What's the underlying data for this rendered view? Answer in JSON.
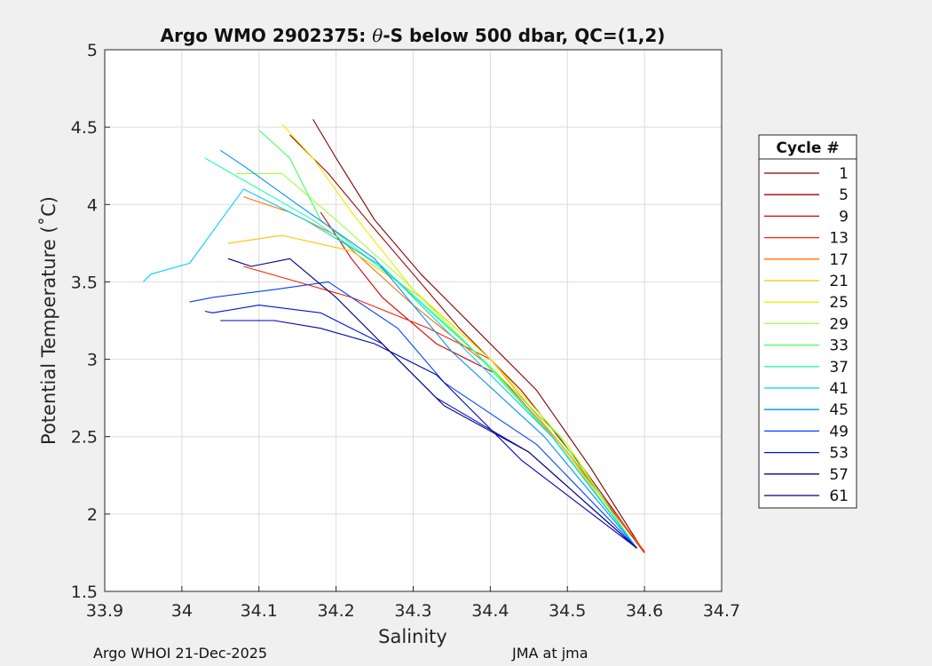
{
  "chart_data": {
    "type": "line",
    "title_prefix": "Argo WMO 2902375: ",
    "title_theta": "θ",
    "title_suffix": "-S below 500 dbar,  QC=(1,2)",
    "xlabel": "Salinity",
    "ylabel": "Potential Temperature (˚C)",
    "xlim": [
      33.9,
      34.7
    ],
    "ylim": [
      1.5,
      5
    ],
    "xticks": [
      "33.9",
      "34",
      "34.1",
      "34.2",
      "34.3",
      "34.4",
      "34.5",
      "34.6",
      "34.7"
    ],
    "yticks": [
      "1.5",
      "2",
      "2.5",
      "3",
      "3.5",
      "4",
      "4.5",
      "5"
    ],
    "grid": true,
    "legend": {
      "title": "Cycle #",
      "placement": "right",
      "entries": [
        {
          "label": "1",
          "color": "#800000"
        },
        {
          "label": "5",
          "color": "#a30000"
        },
        {
          "label": "9",
          "color": "#d40000"
        },
        {
          "label": "13",
          "color": "#ff2000"
        },
        {
          "label": "17",
          "color": "#ff7000"
        },
        {
          "label": "21",
          "color": "#ffc000"
        },
        {
          "label": "25",
          "color": "#e8f000"
        },
        {
          "label": "29",
          "color": "#a0ff40"
        },
        {
          "label": "33",
          "color": "#40ff60"
        },
        {
          "label": "37",
          "color": "#20ffb0"
        },
        {
          "label": "41",
          "color": "#00d0ff"
        },
        {
          "label": "45",
          "color": "#0090ff"
        },
        {
          "label": "49",
          "color": "#0040ff"
        },
        {
          "label": "53",
          "color": "#0010e0"
        },
        {
          "label": "57",
          "color": "#0000b0"
        },
        {
          "label": "61",
          "color": "#000080"
        }
      ]
    },
    "series": [
      {
        "name": "1",
        "color": "#800000",
        "points": [
          [
            34.6,
            1.75
          ],
          [
            34.53,
            2.3
          ],
          [
            34.46,
            2.8
          ],
          [
            34.38,
            3.2
          ],
          [
            34.31,
            3.55
          ],
          [
            34.25,
            3.9
          ],
          [
            34.2,
            4.3
          ],
          [
            34.17,
            4.55
          ]
        ]
      },
      {
        "name": "5",
        "color": "#a30000",
        "points": [
          [
            34.6,
            1.75
          ],
          [
            34.52,
            2.3
          ],
          [
            34.44,
            2.8
          ],
          [
            34.36,
            3.2
          ],
          [
            34.3,
            3.55
          ],
          [
            34.24,
            3.9
          ],
          [
            34.19,
            4.2
          ],
          [
            34.14,
            4.45
          ]
        ]
      },
      {
        "name": "9",
        "color": "#d40000",
        "points": [
          [
            34.6,
            1.75
          ],
          [
            34.5,
            2.4
          ],
          [
            34.41,
            2.9
          ],
          [
            34.33,
            3.1
          ],
          [
            34.26,
            3.4
          ],
          [
            34.22,
            3.65
          ],
          [
            34.18,
            3.95
          ]
        ]
      },
      {
        "name": "13",
        "color": "#ff2000",
        "points": [
          [
            34.6,
            1.76
          ],
          [
            34.5,
            2.4
          ],
          [
            34.4,
            3.0
          ],
          [
            34.32,
            3.2
          ],
          [
            34.22,
            3.4
          ],
          [
            34.15,
            3.5
          ],
          [
            34.08,
            3.6
          ]
        ]
      },
      {
        "name": "17",
        "color": "#ff7000",
        "points": [
          [
            34.6,
            1.76
          ],
          [
            34.5,
            2.4
          ],
          [
            34.4,
            2.95
          ],
          [
            34.3,
            3.35
          ],
          [
            34.2,
            3.8
          ],
          [
            34.14,
            3.95
          ],
          [
            34.08,
            4.05
          ]
        ]
      },
      {
        "name": "21",
        "color": "#ffc000",
        "points": [
          [
            34.59,
            1.77
          ],
          [
            34.5,
            2.4
          ],
          [
            34.4,
            3.0
          ],
          [
            34.31,
            3.4
          ],
          [
            34.22,
            3.7
          ],
          [
            34.13,
            3.8
          ],
          [
            34.06,
            3.75
          ]
        ]
      },
      {
        "name": "25",
        "color": "#e8f000",
        "points": [
          [
            34.59,
            1.77
          ],
          [
            34.5,
            2.45
          ],
          [
            34.4,
            3.0
          ],
          [
            34.3,
            3.45
          ],
          [
            34.22,
            3.95
          ],
          [
            34.17,
            4.3
          ],
          [
            34.13,
            4.52
          ]
        ]
      },
      {
        "name": "29",
        "color": "#a0ff40",
        "points": [
          [
            34.59,
            1.78
          ],
          [
            34.49,
            2.45
          ],
          [
            34.39,
            3.0
          ],
          [
            34.29,
            3.5
          ],
          [
            34.2,
            3.9
          ],
          [
            34.13,
            4.2
          ],
          [
            34.07,
            4.2
          ]
        ]
      },
      {
        "name": "33",
        "color": "#40ff60",
        "points": [
          [
            34.59,
            1.78
          ],
          [
            34.49,
            2.5
          ],
          [
            34.39,
            3.0
          ],
          [
            34.28,
            3.5
          ],
          [
            34.18,
            3.9
          ],
          [
            34.14,
            4.3
          ],
          [
            34.1,
            4.48
          ]
        ]
      },
      {
        "name": "37",
        "color": "#20ffb0",
        "points": [
          [
            34.59,
            1.78
          ],
          [
            34.48,
            2.5
          ],
          [
            34.37,
            3.1
          ],
          [
            34.27,
            3.55
          ],
          [
            34.17,
            3.9
          ],
          [
            34.1,
            4.1
          ],
          [
            34.03,
            4.3
          ]
        ]
      },
      {
        "name": "41",
        "color": "#00d0ff",
        "points": [
          [
            34.59,
            1.78
          ],
          [
            34.48,
            2.5
          ],
          [
            34.36,
            3.1
          ],
          [
            34.26,
            3.6
          ],
          [
            34.16,
            3.9
          ],
          [
            34.08,
            4.1
          ],
          [
            34.01,
            3.62
          ],
          [
            33.96,
            3.55
          ],
          [
            33.95,
            3.5
          ]
        ]
      },
      {
        "name": "45",
        "color": "#0090ff",
        "points": [
          [
            34.59,
            1.78
          ],
          [
            34.47,
            2.5
          ],
          [
            34.35,
            3.05
          ],
          [
            34.25,
            3.65
          ],
          [
            34.15,
            4.0
          ],
          [
            34.08,
            4.25
          ],
          [
            34.05,
            4.35
          ]
        ]
      },
      {
        "name": "49",
        "color": "#0040ff",
        "points": [
          [
            34.59,
            1.78
          ],
          [
            34.46,
            2.45
          ],
          [
            34.34,
            2.85
          ],
          [
            34.28,
            3.2
          ],
          [
            34.19,
            3.5
          ],
          [
            34.12,
            3.45
          ],
          [
            34.04,
            3.4
          ],
          [
            34.01,
            3.37
          ]
        ]
      },
      {
        "name": "53",
        "color": "#0010e0",
        "points": [
          [
            34.59,
            1.78
          ],
          [
            34.45,
            2.4
          ],
          [
            34.33,
            2.75
          ],
          [
            34.26,
            3.1
          ],
          [
            34.18,
            3.3
          ],
          [
            34.1,
            3.35
          ],
          [
            34.04,
            3.3
          ],
          [
            34.03,
            3.31
          ]
        ]
      },
      {
        "name": "57",
        "color": "#0000b0",
        "points": [
          [
            34.59,
            1.78
          ],
          [
            34.44,
            2.35
          ],
          [
            34.33,
            2.9
          ],
          [
            34.25,
            3.1
          ],
          [
            34.18,
            3.2
          ],
          [
            34.12,
            3.25
          ],
          [
            34.06,
            3.25
          ],
          [
            34.05,
            3.25
          ]
        ]
      },
      {
        "name": "61",
        "color": "#000080",
        "points": [
          [
            34.59,
            1.78
          ],
          [
            34.45,
            2.4
          ],
          [
            34.34,
            2.7
          ],
          [
            34.27,
            3.05
          ],
          [
            34.2,
            3.4
          ],
          [
            34.14,
            3.65
          ],
          [
            34.09,
            3.6
          ],
          [
            34.06,
            3.65
          ]
        ]
      }
    ]
  },
  "footer": {
    "left": "Argo WHOI 21-Dec-2025",
    "right": "JMA at jma"
  }
}
